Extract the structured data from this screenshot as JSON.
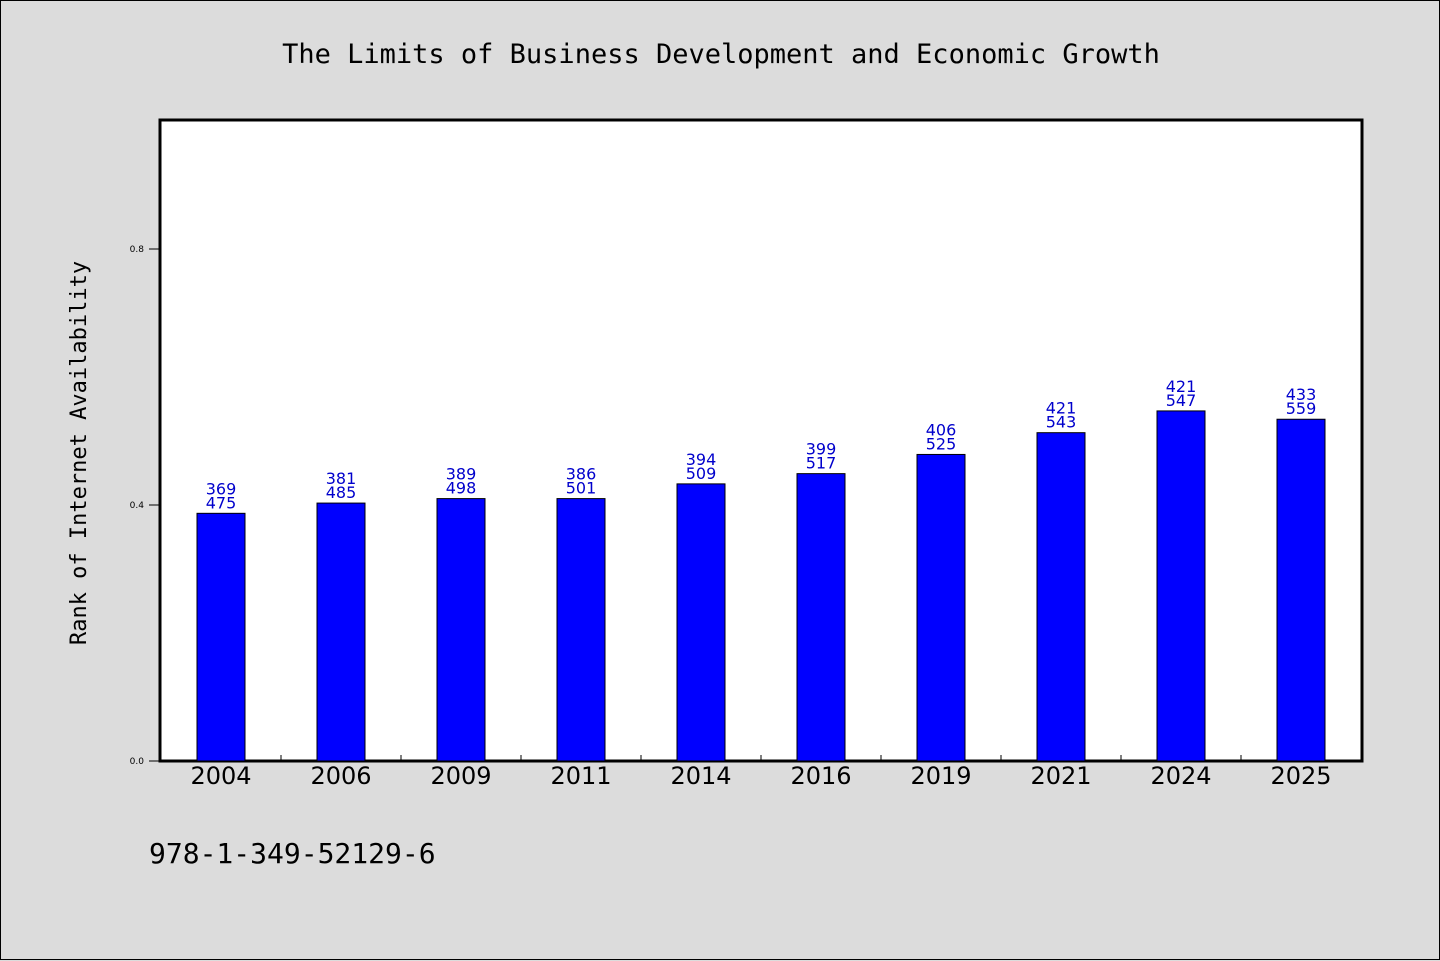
{
  "chart_data": {
    "type": "bar",
    "title": "The Limits of Business Development and Economic Growth",
    "ylabel": "Rank of Internet Availability",
    "xlabel": "",
    "categories": [
      "2004",
      "2006",
      "2009",
      "2011",
      "2014",
      "2016",
      "2019",
      "2021",
      "2024",
      "2025"
    ],
    "values": [
      0.387,
      0.403,
      0.41,
      0.41,
      0.433,
      0.449,
      0.479,
      0.513,
      0.547,
      0.534
    ],
    "label_top": [
      "369",
      "381",
      "389",
      "386",
      "394",
      "399",
      "406",
      "421",
      "421",
      "433"
    ],
    "label_bottom": [
      "475",
      "485",
      "498",
      "501",
      "509",
      "517",
      "525",
      "543",
      "547",
      "559"
    ],
    "ylim": [
      0,
      1.0
    ],
    "yticks": [
      0.0,
      0.4,
      0.8
    ],
    "ytick_labels": [
      "0.0",
      "0.4",
      "0.8"
    ],
    "bar_color": "#0000ff",
    "label_color": "#0000cc",
    "grid": false
  },
  "footer": {
    "isbn": "978-1-349-52129-6"
  }
}
